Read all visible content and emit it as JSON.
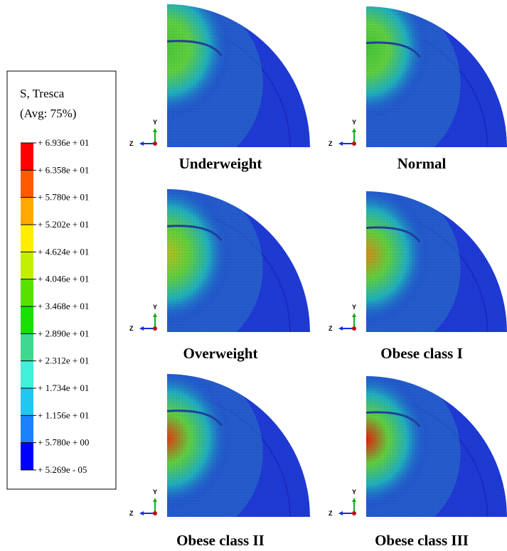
{
  "legend": {
    "title": "S, Tresca",
    "subtitle": "(Avg: 75%)",
    "labels": [
      "+ 6.936e + 01",
      "+ 6.358e + 01",
      "+ 5.780e + 01",
      "+ 5.202e + 01",
      "+ 4.624e + 01",
      "+ 4.046e + 01",
      "+ 3.468e + 01",
      "+ 2.890e + 01",
      "+ 2.312e + 01",
      "+ 1.734e + 01",
      "+ 1.156e + 01",
      "+ 5.780e + 00",
      "+ 5.269e - 05"
    ],
    "colors": [
      "#ff0000",
      "#ff5a00",
      "#ffaa00",
      "#ffee00",
      "#c4f000",
      "#5ae000",
      "#18e000",
      "#40d890",
      "#40f0d8",
      "#20c8f0",
      "#1c80ff",
      "#0000ff"
    ]
  },
  "triad": {
    "y": "Y",
    "z": "Z"
  },
  "panels": [
    {
      "label": "Underweight"
    },
    {
      "label": "Normal"
    },
    {
      "label": "Overweight"
    },
    {
      "label": "Obese class I"
    },
    {
      "label": "Obese class II"
    },
    {
      "label": "Obese class III"
    }
  ]
}
